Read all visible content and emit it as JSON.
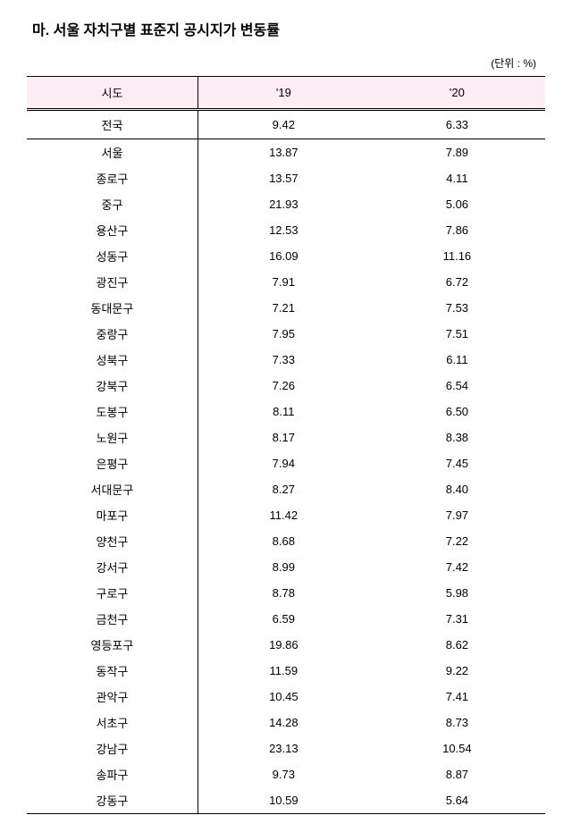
{
  "title": "마. 서울 자치구별 표준지 공시지가 변동률",
  "unit": "(단위 : %)",
  "columns": [
    "시도",
    "'19",
    "'20"
  ],
  "national_row": [
    "전국",
    "9.42",
    "6.33"
  ],
  "rows": [
    [
      "서울",
      "13.87",
      "7.89"
    ],
    [
      "종로구",
      "13.57",
      "4.11"
    ],
    [
      "중구",
      "21.93",
      "5.06"
    ],
    [
      "용산구",
      "12.53",
      "7.86"
    ],
    [
      "성동구",
      "16.09",
      "11.16"
    ],
    [
      "광진구",
      "7.91",
      "6.72"
    ],
    [
      "동대문구",
      "7.21",
      "7.53"
    ],
    [
      "중랑구",
      "7.95",
      "7.51"
    ],
    [
      "성북구",
      "7.33",
      "6.11"
    ],
    [
      "강북구",
      "7.26",
      "6.54"
    ],
    [
      "도봉구",
      "8.11",
      "6.50"
    ],
    [
      "노원구",
      "8.17",
      "8.38"
    ],
    [
      "은평구",
      "7.94",
      "7.45"
    ],
    [
      "서대문구",
      "8.27",
      "8.40"
    ],
    [
      "마포구",
      "11.42",
      "7.97"
    ],
    [
      "양천구",
      "8.68",
      "7.22"
    ],
    [
      "강서구",
      "8.99",
      "7.42"
    ],
    [
      "구로구",
      "8.78",
      "5.98"
    ],
    [
      "금천구",
      "6.59",
      "7.31"
    ],
    [
      "영등포구",
      "19.86",
      "8.62"
    ],
    [
      "동작구",
      "11.59",
      "9.22"
    ],
    [
      "관악구",
      "10.45",
      "7.41"
    ],
    [
      "서초구",
      "14.28",
      "8.73"
    ],
    [
      "강남구",
      "23.13",
      "10.54"
    ],
    [
      "송파구",
      "9.73",
      "8.87"
    ],
    [
      "강동구",
      "10.59",
      "5.64"
    ]
  ]
}
